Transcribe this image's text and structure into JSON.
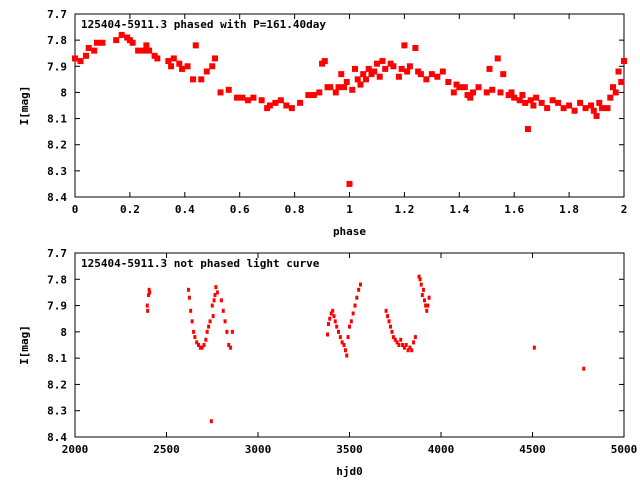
{
  "chart_data": [
    {
      "type": "scatter",
      "title": "125404-5911.3 phased with P=161.40day",
      "xlabel": "phase",
      "ylabel": "I[mag]",
      "xlim": [
        0,
        2
      ],
      "ylim": [
        8.4,
        7.7
      ],
      "y_reversed": true,
      "xticks": [
        "0",
        "0.2",
        "0.4",
        "0.6",
        "0.8",
        "1",
        "1.2",
        "1.4",
        "1.6",
        "1.8",
        "2"
      ],
      "yticks": [
        "7.7",
        "7.8",
        "7.9",
        "8",
        "8.1",
        "8.2",
        "8.3",
        "8.4"
      ],
      "grid": false,
      "marker_color": "#ff0000",
      "marker": "cross",
      "points": [
        [
          0.0,
          7.87
        ],
        [
          0.02,
          7.88
        ],
        [
          0.04,
          7.86
        ],
        [
          0.05,
          7.83
        ],
        [
          0.07,
          7.84
        ],
        [
          0.08,
          7.81
        ],
        [
          0.1,
          7.81
        ],
        [
          0.15,
          7.8
        ],
        [
          0.17,
          7.78
        ],
        [
          0.19,
          7.79
        ],
        [
          0.2,
          7.8
        ],
        [
          0.21,
          7.81
        ],
        [
          0.23,
          7.84
        ],
        [
          0.25,
          7.84
        ],
        [
          0.26,
          7.82
        ],
        [
          0.27,
          7.84
        ],
        [
          0.29,
          7.86
        ],
        [
          0.3,
          7.87
        ],
        [
          0.34,
          7.88
        ],
        [
          0.35,
          7.9
        ],
        [
          0.36,
          7.87
        ],
        [
          0.38,
          7.89
        ],
        [
          0.39,
          7.91
        ],
        [
          0.41,
          7.9
        ],
        [
          0.43,
          7.95
        ],
        [
          0.44,
          7.82
        ],
        [
          0.46,
          7.95
        ],
        [
          0.48,
          7.92
        ],
        [
          0.5,
          7.9
        ],
        [
          0.51,
          7.87
        ],
        [
          0.53,
          8.0
        ],
        [
          0.56,
          7.99
        ],
        [
          0.59,
          8.02
        ],
        [
          0.61,
          8.02
        ],
        [
          0.63,
          8.03
        ],
        [
          0.65,
          8.02
        ],
        [
          0.68,
          8.03
        ],
        [
          0.7,
          8.06
        ],
        [
          0.71,
          8.05
        ],
        [
          0.73,
          8.04
        ],
        [
          0.75,
          8.03
        ],
        [
          0.77,
          8.05
        ],
        [
          0.79,
          8.06
        ],
        [
          0.82,
          8.04
        ],
        [
          0.85,
          8.01
        ],
        [
          0.87,
          8.01
        ],
        [
          0.89,
          8.0
        ],
        [
          0.9,
          7.89
        ],
        [
          0.91,
          7.88
        ],
        [
          0.92,
          7.98
        ],
        [
          0.93,
          7.98
        ],
        [
          0.95,
          8.0
        ],
        [
          0.96,
          7.98
        ],
        [
          0.97,
          7.93
        ],
        [
          0.98,
          7.98
        ],
        [
          0.99,
          7.96
        ],
        [
          1.0,
          8.35
        ],
        [
          1.01,
          7.99
        ],
        [
          1.02,
          7.91
        ],
        [
          1.03,
          7.95
        ],
        [
          1.04,
          7.97
        ],
        [
          1.05,
          7.93
        ],
        [
          1.06,
          7.95
        ],
        [
          1.07,
          7.91
        ],
        [
          1.08,
          7.93
        ],
        [
          1.09,
          7.92
        ],
        [
          1.1,
          7.89
        ],
        [
          1.11,
          7.94
        ],
        [
          1.12,
          7.88
        ],
        [
          1.13,
          7.91
        ],
        [
          1.15,
          7.89
        ],
        [
          1.16,
          7.9
        ],
        [
          1.18,
          7.94
        ],
        [
          1.19,
          7.91
        ],
        [
          1.2,
          7.82
        ],
        [
          1.21,
          7.92
        ],
        [
          1.22,
          7.9
        ],
        [
          1.24,
          7.83
        ],
        [
          1.25,
          7.92
        ],
        [
          1.26,
          7.93
        ],
        [
          1.28,
          7.95
        ],
        [
          1.3,
          7.93
        ],
        [
          1.32,
          7.94
        ],
        [
          1.34,
          7.92
        ],
        [
          1.36,
          7.96
        ],
        [
          1.38,
          8.0
        ],
        [
          1.39,
          7.97
        ],
        [
          1.4,
          7.98
        ],
        [
          1.42,
          7.98
        ],
        [
          1.43,
          8.01
        ],
        [
          1.44,
          8.02
        ],
        [
          1.45,
          8.0
        ],
        [
          1.47,
          7.98
        ],
        [
          1.5,
          8.0
        ],
        [
          1.51,
          7.91
        ],
        [
          1.52,
          7.99
        ],
        [
          1.54,
          7.87
        ],
        [
          1.55,
          8.0
        ],
        [
          1.56,
          7.93
        ],
        [
          1.58,
          8.01
        ],
        [
          1.59,
          8.0
        ],
        [
          1.6,
          8.02
        ],
        [
          1.62,
          8.03
        ],
        [
          1.63,
          8.01
        ],
        [
          1.64,
          8.04
        ],
        [
          1.65,
          8.14
        ],
        [
          1.66,
          8.03
        ],
        [
          1.67,
          8.05
        ],
        [
          1.68,
          8.02
        ],
        [
          1.7,
          8.04
        ],
        [
          1.72,
          8.06
        ],
        [
          1.74,
          8.03
        ],
        [
          1.76,
          8.04
        ],
        [
          1.78,
          8.06
        ],
        [
          1.8,
          8.05
        ],
        [
          1.82,
          8.07
        ],
        [
          1.84,
          8.04
        ],
        [
          1.86,
          8.06
        ],
        [
          1.88,
          8.05
        ],
        [
          1.89,
          8.07
        ],
        [
          1.9,
          8.09
        ],
        [
          1.91,
          8.04
        ],
        [
          1.92,
          8.06
        ],
        [
          1.94,
          8.06
        ],
        [
          1.95,
          8.02
        ],
        [
          1.96,
          7.98
        ],
        [
          1.97,
          8.0
        ],
        [
          1.98,
          7.92
        ],
        [
          1.99,
          7.96
        ],
        [
          2.0,
          7.88
        ]
      ]
    },
    {
      "type": "scatter",
      "title": "125404-5911.3 not phased light curve",
      "xlabel": "hjd0",
      "ylabel": "I[mag]",
      "xlim": [
        2000,
        5000
      ],
      "ylim": [
        8.4,
        7.7
      ],
      "y_reversed": true,
      "xticks": [
        "2000",
        "2500",
        "3000",
        "3500",
        "4000",
        "4500",
        "5000"
      ],
      "yticks": [
        "7.7",
        "7.8",
        "7.9",
        "8",
        "8.1",
        "8.2",
        "8.3",
        "8.4"
      ],
      "grid": false,
      "marker_color": "#ff0000",
      "marker": "dot",
      "points": [
        [
          2395,
          7.9
        ],
        [
          2397,
          7.92
        ],
        [
          2402,
          7.86
        ],
        [
          2405,
          7.84
        ],
        [
          2408,
          7.85
        ],
        [
          2620,
          7.84
        ],
        [
          2625,
          7.87
        ],
        [
          2632,
          7.92
        ],
        [
          2640,
          7.96
        ],
        [
          2648,
          8.0
        ],
        [
          2655,
          8.02
        ],
        [
          2665,
          8.04
        ],
        [
          2675,
          8.05
        ],
        [
          2685,
          8.06
        ],
        [
          2695,
          8.06
        ],
        [
          2705,
          8.05
        ],
        [
          2715,
          8.03
        ],
        [
          2722,
          8.0
        ],
        [
          2730,
          7.98
        ],
        [
          2738,
          7.96
        ],
        [
          2745,
          8.34
        ],
        [
          2750,
          7.9
        ],
        [
          2755,
          7.94
        ],
        [
          2760,
          7.88
        ],
        [
          2765,
          7.86
        ],
        [
          2770,
          7.83
        ],
        [
          2778,
          7.85
        ],
        [
          2800,
          7.88
        ],
        [
          2810,
          7.92
        ],
        [
          2820,
          7.96
        ],
        [
          2830,
          8.0
        ],
        [
          2840,
          8.05
        ],
        [
          2850,
          8.06
        ],
        [
          2860,
          8.0
        ],
        [
          3380,
          8.01
        ],
        [
          3385,
          7.97
        ],
        [
          3392,
          7.95
        ],
        [
          3400,
          7.93
        ],
        [
          3408,
          7.92
        ],
        [
          3415,
          7.94
        ],
        [
          3422,
          7.96
        ],
        [
          3430,
          7.98
        ],
        [
          3440,
          8.0
        ],
        [
          3450,
          8.02
        ],
        [
          3460,
          8.04
        ],
        [
          3470,
          8.05
        ],
        [
          3478,
          8.07
        ],
        [
          3485,
          8.09
        ],
        [
          3492,
          8.02
        ],
        [
          3500,
          7.98
        ],
        [
          3510,
          7.96
        ],
        [
          3520,
          7.93
        ],
        [
          3530,
          7.9
        ],
        [
          3540,
          7.87
        ],
        [
          3550,
          7.84
        ],
        [
          3560,
          7.82
        ],
        [
          3700,
          7.92
        ],
        [
          3708,
          7.94
        ],
        [
          3716,
          7.96
        ],
        [
          3724,
          7.98
        ],
        [
          3732,
          8.0
        ],
        [
          3740,
          8.02
        ],
        [
          3750,
          8.03
        ],
        [
          3760,
          8.04
        ],
        [
          3770,
          8.05
        ],
        [
          3780,
          8.03
        ],
        [
          3790,
          8.05
        ],
        [
          3800,
          8.06
        ],
        [
          3810,
          8.05
        ],
        [
          3820,
          8.07
        ],
        [
          3830,
          8.06
        ],
        [
          3840,
          8.07
        ],
        [
          3850,
          8.04
        ],
        [
          3860,
          8.02
        ],
        [
          3880,
          7.79
        ],
        [
          3886,
          7.8
        ],
        [
          3892,
          7.82
        ],
        [
          3898,
          7.86
        ],
        [
          3904,
          7.84
        ],
        [
          3910,
          7.88
        ],
        [
          3916,
          7.9
        ],
        [
          3922,
          7.92
        ],
        [
          3928,
          7.9
        ],
        [
          3935,
          7.87
        ],
        [
          4510,
          8.06
        ],
        [
          4780,
          8.14
        ]
      ]
    }
  ]
}
